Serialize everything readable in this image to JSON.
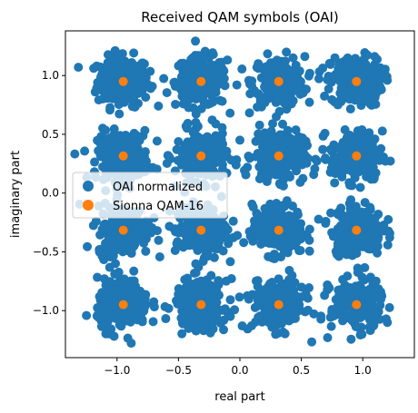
{
  "colors": {
    "oai": "#1f77b4",
    "sionna": "#ff7f0e",
    "axis": "#000000",
    "background": "#ffffff"
  },
  "chart_data": {
    "type": "scatter",
    "title": "Received QAM symbols (OAI)",
    "xlabel": "real part",
    "ylabel": "imaginary part",
    "xlim": [
      -1.42,
      1.42
    ],
    "ylim": [
      -1.4,
      1.38
    ],
    "xticks": [
      -1.0,
      -0.5,
      0.0,
      0.5,
      1.0
    ],
    "yticks": [
      -1.0,
      -0.5,
      0.0,
      0.5,
      1.0
    ],
    "xtick_labels": [
      "−1.0",
      "−0.5",
      "0.0",
      "0.5",
      "1.0"
    ],
    "ytick_labels": [
      "−1.0",
      "−0.5",
      "0.0",
      "0.5",
      "1.0"
    ],
    "grid": false,
    "legend_position": "center-left",
    "series": [
      {
        "name": "OAI normalized",
        "color": "#1f77b4",
        "points_per_cluster": 220,
        "cluster_spread": 0.105,
        "cluster_centers": [
          [
            -0.949,
            0.949
          ],
          [
            -0.316,
            0.949
          ],
          [
            0.316,
            0.949
          ],
          [
            0.949,
            0.949
          ],
          [
            -0.949,
            0.316
          ],
          [
            -0.316,
            0.316
          ],
          [
            0.316,
            0.316
          ],
          [
            0.949,
            0.316
          ],
          [
            -0.949,
            -0.316
          ],
          [
            -0.316,
            -0.316
          ],
          [
            0.316,
            -0.316
          ],
          [
            0.949,
            -0.316
          ],
          [
            -0.949,
            -0.949
          ],
          [
            -0.316,
            -0.949
          ],
          [
            0.316,
            -0.949
          ],
          [
            0.949,
            -0.949
          ]
        ]
      },
      {
        "name": "Sionna QAM-16",
        "color": "#ff7f0e",
        "x": [
          -0.949,
          -0.316,
          0.316,
          0.949,
          -0.949,
          -0.316,
          0.316,
          0.949,
          -0.949,
          -0.316,
          0.316,
          0.949,
          -0.949,
          -0.316,
          0.316,
          0.949
        ],
        "y": [
          0.949,
          0.949,
          0.949,
          0.949,
          0.316,
          0.316,
          0.316,
          0.316,
          -0.316,
          -0.316,
          -0.316,
          -0.316,
          -0.949,
          -0.949,
          -0.949,
          -0.949
        ]
      }
    ]
  }
}
